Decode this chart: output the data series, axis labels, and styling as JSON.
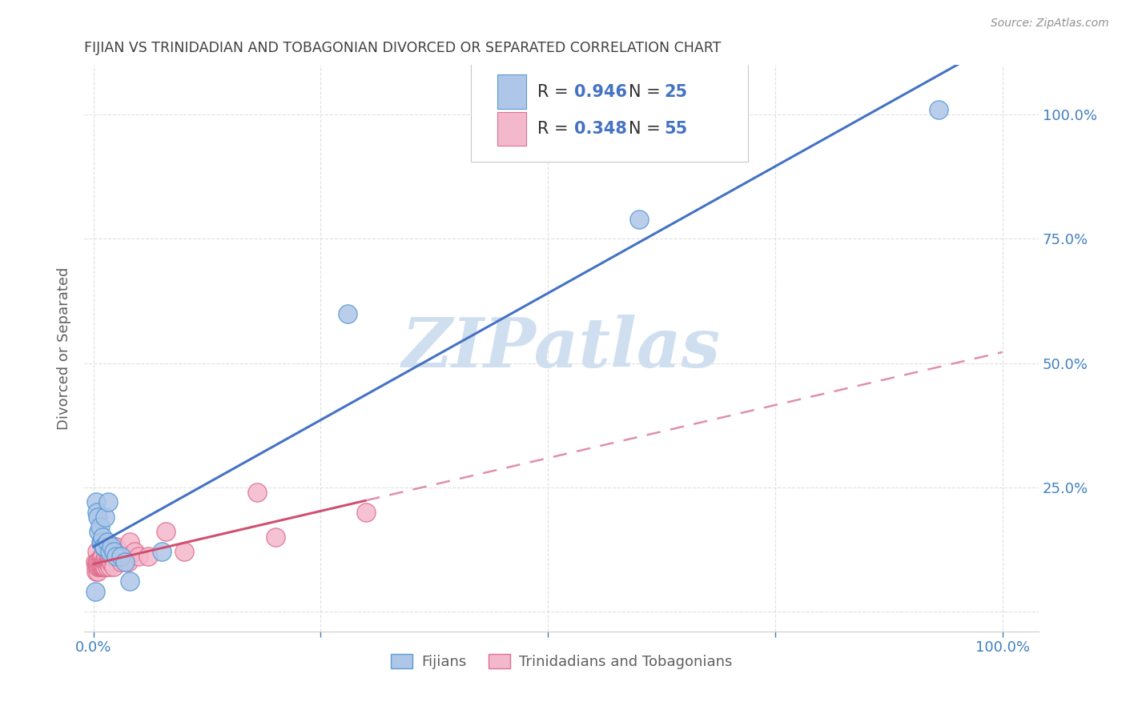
{
  "title": "FIJIAN VS TRINIDADIAN AND TOBAGONIAN DIVORCED OR SEPARATED CORRELATION CHART",
  "source": "Source: ZipAtlas.com",
  "ylabel": "Divorced or Separated",
  "fijian_color": "#aec6e8",
  "fijian_edge_color": "#5b9bd5",
  "trini_color": "#f4b8cc",
  "trini_edge_color": "#e07090",
  "fijian_line_color": "#4472c4",
  "trini_line_color": "#d05070",
  "trini_dash_color": "#e090a8",
  "watermark_color": "#d0dff0",
  "background_color": "#ffffff",
  "grid_color": "#e0e0e0",
  "title_color": "#404040",
  "tick_label_color": "#4080c0",
  "ylabel_color": "#606060",
  "legend_text_color": "#303030",
  "legend_r_color": "#4472c4",
  "fijian_legend_label": "Fijians",
  "trini_legend_label": "Trinidadians and Tobagonians",
  "fijian_points_x": [
    0.002,
    0.003,
    0.004,
    0.005,
    0.006,
    0.007,
    0.008,
    0.009,
    0.01,
    0.011,
    0.012,
    0.013,
    0.015,
    0.016,
    0.018,
    0.02,
    0.022,
    0.025,
    0.03,
    0.035,
    0.04,
    0.075,
    0.28,
    0.6,
    0.93
  ],
  "fijian_points_y": [
    0.04,
    0.22,
    0.2,
    0.19,
    0.16,
    0.17,
    0.14,
    0.14,
    0.15,
    0.13,
    0.13,
    0.19,
    0.14,
    0.22,
    0.12,
    0.13,
    0.12,
    0.11,
    0.11,
    0.1,
    0.06,
    0.12,
    0.6,
    0.79,
    1.01
  ],
  "trini_points_x": [
    0.002,
    0.003,
    0.003,
    0.004,
    0.004,
    0.005,
    0.005,
    0.005,
    0.006,
    0.006,
    0.007,
    0.007,
    0.008,
    0.008,
    0.009,
    0.009,
    0.01,
    0.01,
    0.01,
    0.011,
    0.011,
    0.012,
    0.012,
    0.013,
    0.013,
    0.014,
    0.014,
    0.015,
    0.015,
    0.016,
    0.016,
    0.017,
    0.018,
    0.018,
    0.019,
    0.02,
    0.02,
    0.022,
    0.023,
    0.025,
    0.025,
    0.028,
    0.03,
    0.032,
    0.035,
    0.038,
    0.04,
    0.045,
    0.05,
    0.06,
    0.08,
    0.1,
    0.18,
    0.2,
    0.3
  ],
  "trini_points_y": [
    0.1,
    0.09,
    0.08,
    0.12,
    0.1,
    0.08,
    0.1,
    0.09,
    0.09,
    0.1,
    0.1,
    0.09,
    0.1,
    0.09,
    0.11,
    0.09,
    0.1,
    0.09,
    0.11,
    0.1,
    0.09,
    0.1,
    0.09,
    0.09,
    0.1,
    0.1,
    0.11,
    0.09,
    0.1,
    0.1,
    0.11,
    0.1,
    0.09,
    0.11,
    0.1,
    0.1,
    0.11,
    0.09,
    0.13,
    0.12,
    0.13,
    0.11,
    0.1,
    0.11,
    0.11,
    0.1,
    0.14,
    0.12,
    0.11,
    0.11,
    0.16,
    0.12,
    0.24,
    0.15,
    0.2
  ]
}
